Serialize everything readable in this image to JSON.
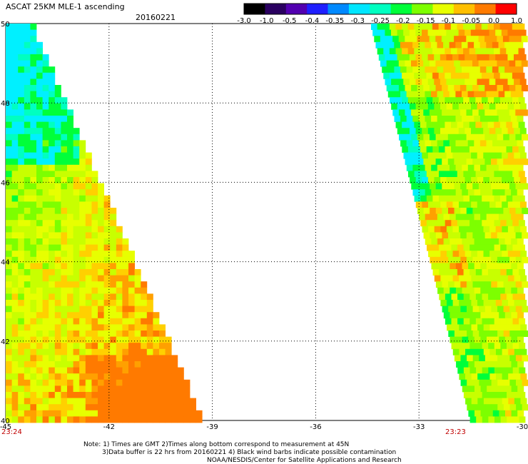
{
  "title": "ASCAT 25KM MLE-1 ascending",
  "date": "20160221",
  "colorbar": {
    "ticks": [
      "-3.0",
      "-1.0",
      "-0.5",
      "-0.4",
      "-0.35",
      "-0.3",
      "-0.25",
      "-0.2",
      "-0.15",
      "-0.1",
      "-0.05",
      "0.0",
      "1.0"
    ],
    "colors": [
      "#000000",
      "#2a0060",
      "#5200b0",
      "#1f1fff",
      "#0089ff",
      "#00e6ff",
      "#00ffc0",
      "#00ff3a",
      "#7dff00",
      "#e7ff00",
      "#ffbf00",
      "#ff7a00",
      "#ff0000"
    ]
  },
  "axes": {
    "x_ticks": [
      "-45",
      "-42",
      "-39",
      "-36",
      "-33",
      "-30"
    ],
    "y_ticks": [
      "50",
      "48",
      "46",
      "44",
      "42",
      "40"
    ],
    "x_range": [
      -45,
      -30
    ],
    "y_range": [
      40,
      50
    ],
    "grid": "dotted"
  },
  "times": {
    "left": "23:24",
    "right": "23:23"
  },
  "notes": [
    "Note: 1) Times are GMT 2)Times along bottom correspond to measurement at 45N",
    "3)Data buffer is 22 hrs from 20160221 4) Black wind barbs indicate possible contamination",
    "NOAA/NESDIS/Center for Satellite Applications and Research"
  ],
  "swaths": {
    "left_palette_weights": [
      "#00ffc0",
      "#00ff3a",
      "#7dff00",
      "#e7ff00",
      "#ffbf00",
      "#ff7a00"
    ],
    "right_palette_weights": [
      "#00ffc0",
      "#00ff3a",
      "#7dff00",
      "#e7ff00",
      "#ffbf00",
      "#ff7a00"
    ]
  },
  "colors": {
    "grid": "#000000",
    "background": "#ffffff",
    "time_label": "#c00000"
  }
}
